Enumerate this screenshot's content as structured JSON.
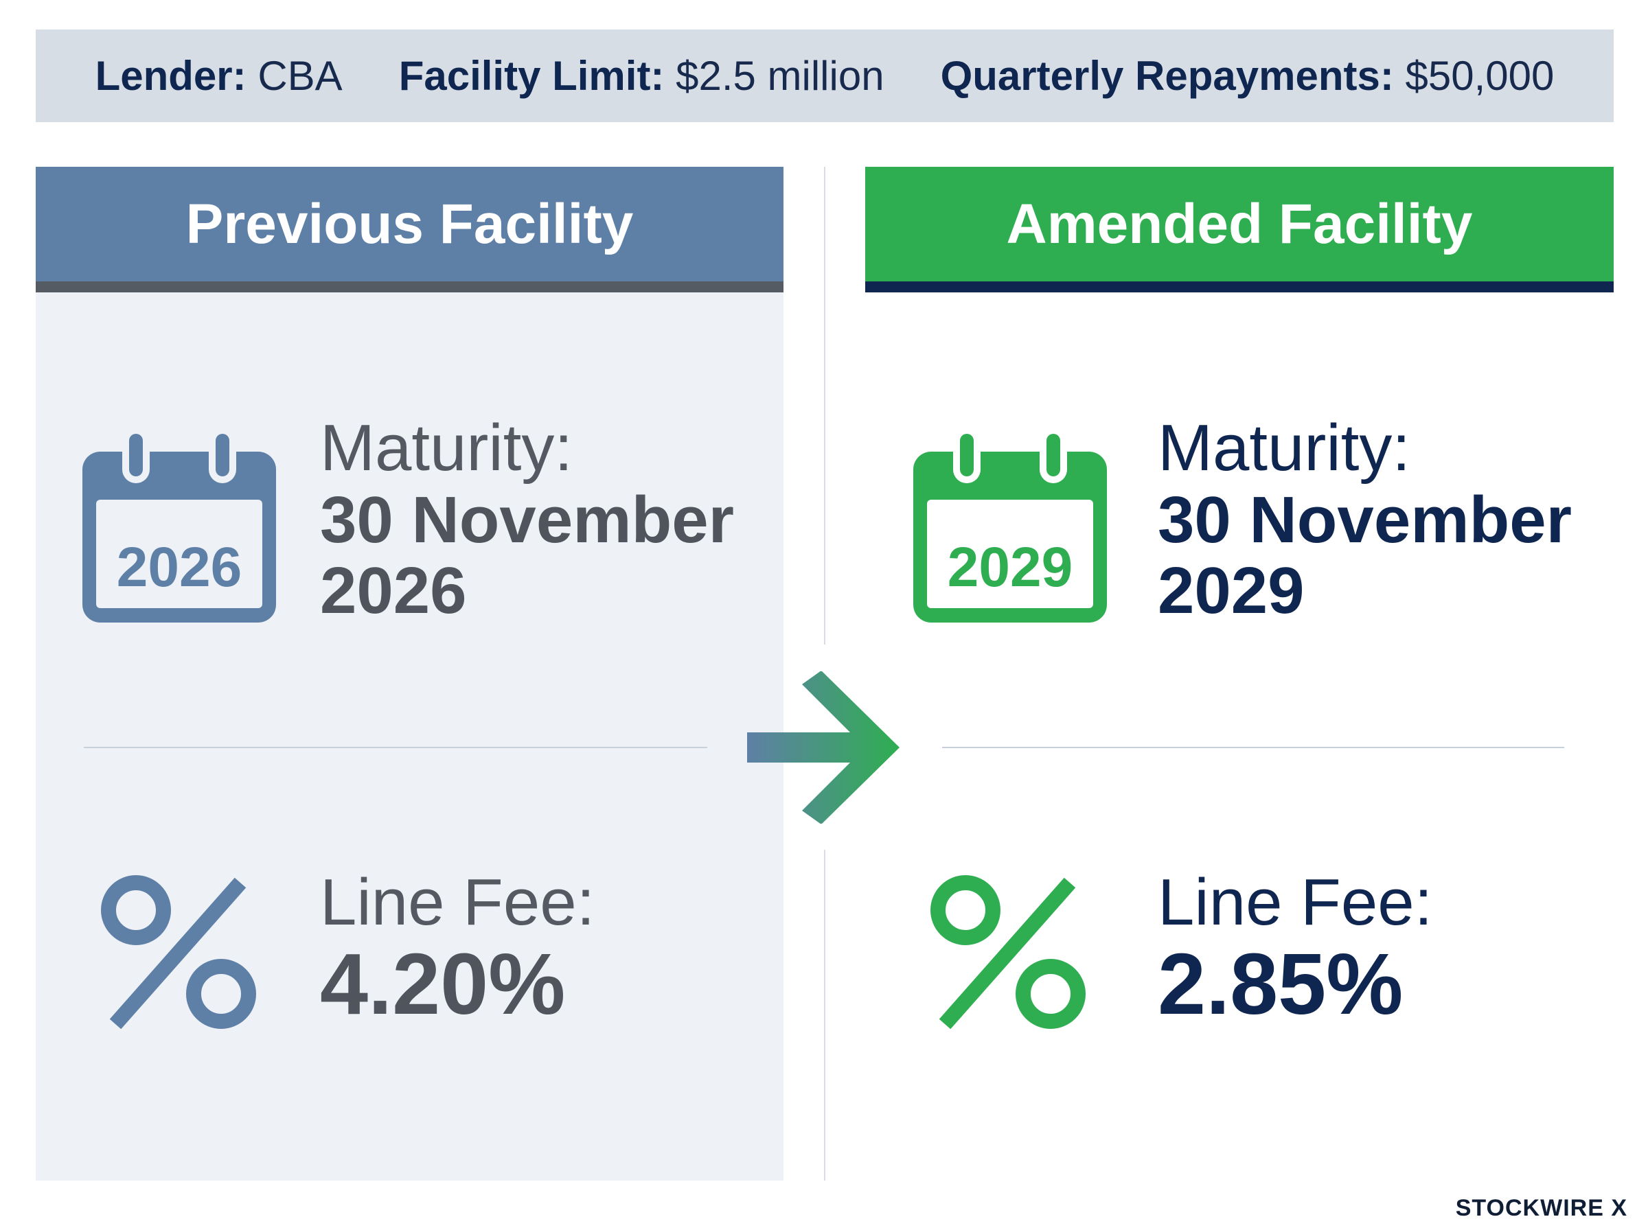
{
  "summary": {
    "lender_label": "Lender:",
    "lender_value": "CBA",
    "limit_label": "Facility Limit:",
    "limit_value": "$2.5 million",
    "repay_label": "Quarterly Repayments:",
    "repay_value": "$50,000"
  },
  "previous": {
    "title": "Previous Facility",
    "calendar_year": "2026",
    "maturity_label": "Maturity:",
    "maturity_line1": "30 November",
    "maturity_line2": "2026",
    "fee_label": "Line Fee:",
    "fee_value": "4.20%"
  },
  "amended": {
    "title": "Amended Facility",
    "calendar_year": "2029",
    "maturity_label": "Maturity:",
    "maturity_line1": "30 November",
    "maturity_line2": "2029",
    "fee_label": "Line Fee:",
    "fee_value": "2.85%"
  },
  "brand": "STOCKWIRE X",
  "colors": {
    "previous_accent": "#5e80a6",
    "amended_accent": "#2fae51",
    "navy": "#0f2650"
  },
  "icons": [
    "calendar-icon",
    "percent-icon",
    "arrow-right-icon"
  ]
}
